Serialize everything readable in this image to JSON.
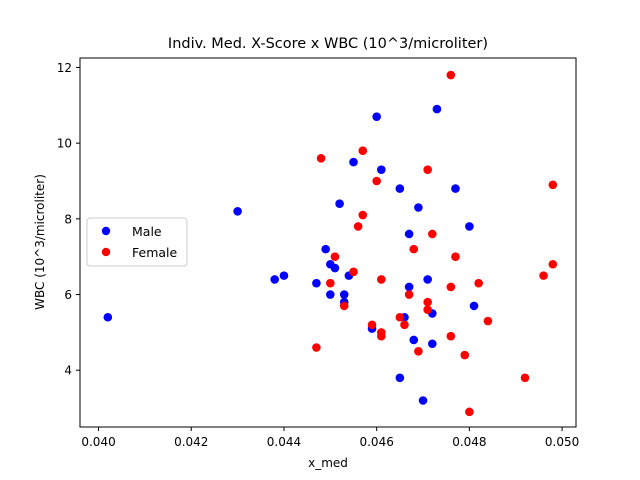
{
  "chart_data": {
    "type": "scatter",
    "title": "Indiv. Med. X-Score x WBC (10^3/microliter)",
    "xlabel": "x_med",
    "ylabel": "WBC (10^3/microliter)",
    "xlim": [
      0.0396,
      0.0503
    ],
    "ylim": [
      2.5,
      12.25
    ],
    "xticks": [
      0.04,
      0.042,
      0.044,
      0.046,
      0.048,
      0.05
    ],
    "xtick_labels": [
      "0.040",
      "0.042",
      "0.044",
      "0.046",
      "0.048",
      "0.050"
    ],
    "yticks": [
      4,
      6,
      8,
      10,
      12
    ],
    "ytick_labels": [
      "4",
      "6",
      "8",
      "10",
      "12"
    ],
    "grid": false,
    "legend": "center-left",
    "series": [
      {
        "name": "Male",
        "color": "#0000ff",
        "points": [
          [
            0.0402,
            5.4
          ],
          [
            0.043,
            8.2
          ],
          [
            0.0438,
            6.4
          ],
          [
            0.044,
            6.5
          ],
          [
            0.0447,
            6.3
          ],
          [
            0.0449,
            7.2
          ],
          [
            0.045,
            6.0
          ],
          [
            0.045,
            6.8
          ],
          [
            0.0451,
            6.7
          ],
          [
            0.0452,
            8.4
          ],
          [
            0.0453,
            5.8
          ],
          [
            0.0453,
            6.0
          ],
          [
            0.0454,
            6.5
          ],
          [
            0.0455,
            9.5
          ],
          [
            0.0459,
            5.1
          ],
          [
            0.046,
            10.7
          ],
          [
            0.0461,
            9.3
          ],
          [
            0.0465,
            8.8
          ],
          [
            0.0465,
            3.8
          ],
          [
            0.0466,
            5.4
          ],
          [
            0.0467,
            7.6
          ],
          [
            0.0467,
            6.2
          ],
          [
            0.0468,
            4.8
          ],
          [
            0.0469,
            8.3
          ],
          [
            0.047,
            3.2
          ],
          [
            0.0471,
            6.4
          ],
          [
            0.0472,
            5.5
          ],
          [
            0.0472,
            4.7
          ],
          [
            0.0473,
            10.9
          ],
          [
            0.0477,
            8.8
          ],
          [
            0.048,
            7.8
          ],
          [
            0.0481,
            5.7
          ]
        ]
      },
      {
        "name": "Female",
        "color": "#ff0000",
        "points": [
          [
            0.0447,
            4.6
          ],
          [
            0.0448,
            9.6
          ],
          [
            0.045,
            6.3
          ],
          [
            0.0451,
            7.0
          ],
          [
            0.0453,
            5.7
          ],
          [
            0.0455,
            6.6
          ],
          [
            0.0456,
            7.8
          ],
          [
            0.0457,
            8.1
          ],
          [
            0.0457,
            9.8
          ],
          [
            0.0459,
            5.2
          ],
          [
            0.046,
            9.0
          ],
          [
            0.0461,
            6.4
          ],
          [
            0.0461,
            5.0
          ],
          [
            0.0461,
            4.9
          ],
          [
            0.0465,
            5.4
          ],
          [
            0.0466,
            5.2
          ],
          [
            0.0467,
            6.0
          ],
          [
            0.0468,
            7.2
          ],
          [
            0.0469,
            4.5
          ],
          [
            0.0471,
            5.8
          ],
          [
            0.0471,
            9.3
          ],
          [
            0.0471,
            5.6
          ],
          [
            0.0472,
            7.6
          ],
          [
            0.0476,
            11.8
          ],
          [
            0.0476,
            6.2
          ],
          [
            0.0476,
            4.9
          ],
          [
            0.0477,
            7.0
          ],
          [
            0.0479,
            4.4
          ],
          [
            0.048,
            2.9
          ],
          [
            0.0482,
            6.3
          ],
          [
            0.0484,
            5.3
          ],
          [
            0.0492,
            3.8
          ],
          [
            0.0496,
            6.5
          ],
          [
            0.0498,
            8.9
          ],
          [
            0.0498,
            6.8
          ]
        ]
      }
    ]
  }
}
